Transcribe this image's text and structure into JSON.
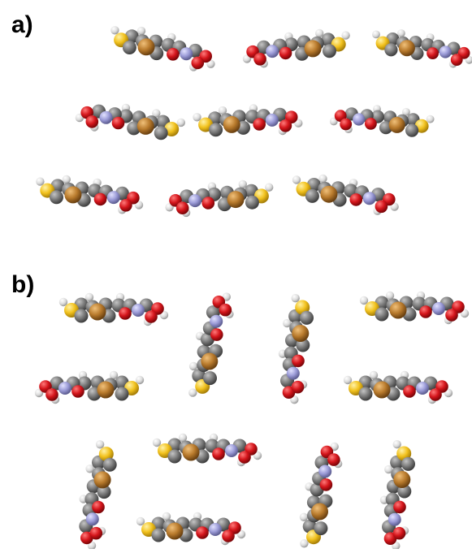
{
  "panels": [
    {
      "label": "a)"
    },
    {
      "label": "b)"
    }
  ],
  "atom_colors": {
    "carbon": "#7a7a7a",
    "hydrogen": "#e2e2e2",
    "oxygen": "#d4151b",
    "nitrogen": "#9c9cd8",
    "sulfur": "#f2c21e",
    "bromine": "#b87a2c"
  }
}
